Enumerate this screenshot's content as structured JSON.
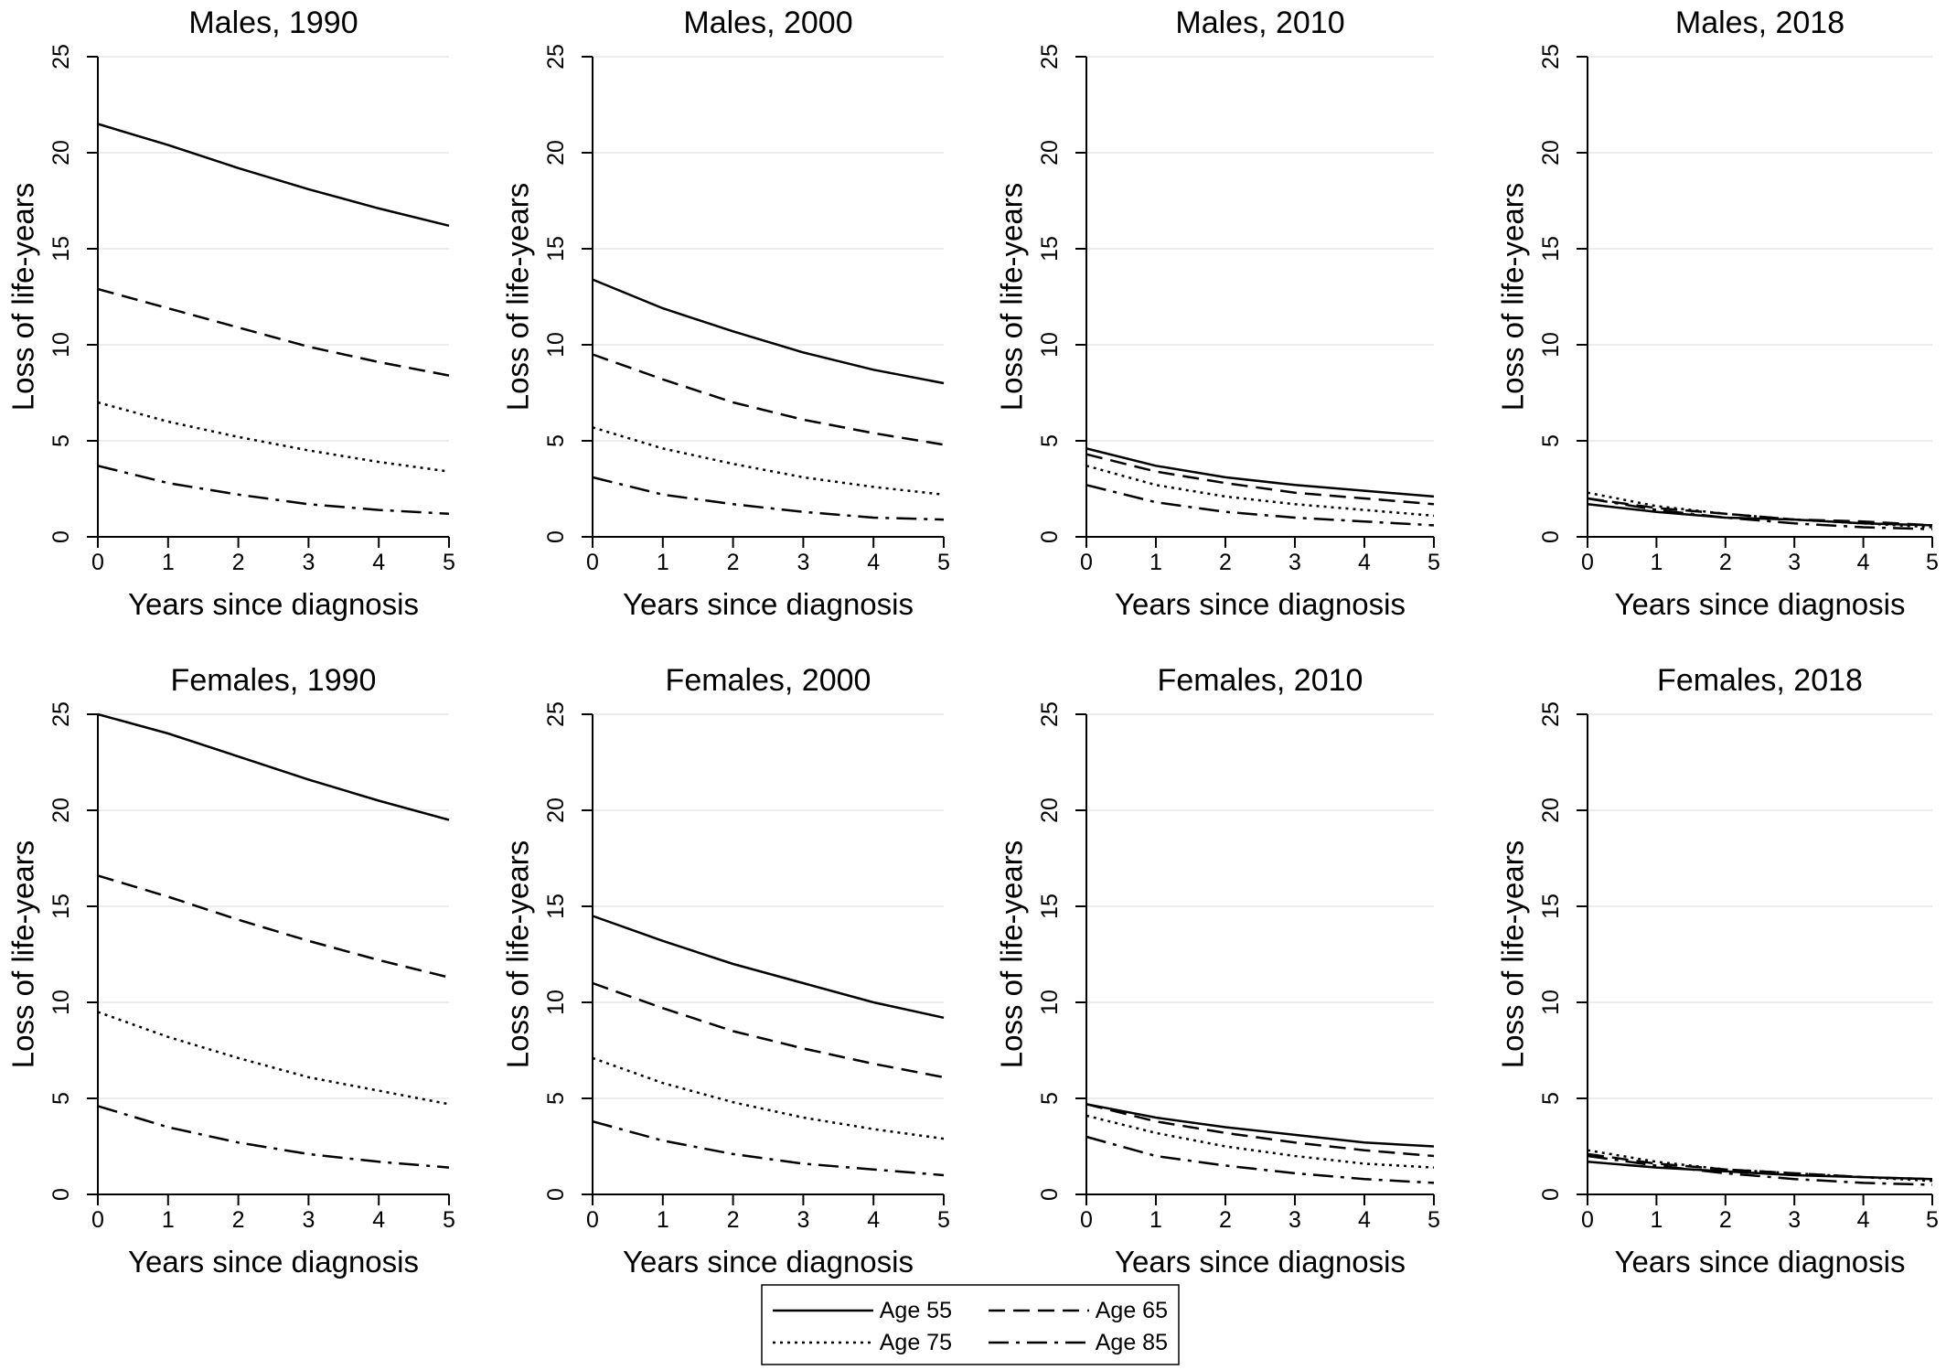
{
  "chart_data": [
    {
      "type": "line",
      "title": "Males, 1990",
      "xlabel": "Years since diagnosis",
      "ylabel": "Loss of life-years",
      "x": [
        0,
        1,
        2,
        3,
        4,
        5
      ],
      "xlim": [
        0,
        5
      ],
      "ylim": [
        0,
        25
      ],
      "xticks": [
        0,
        1,
        2,
        3,
        4,
        5
      ],
      "yticks": [
        0,
        5,
        10,
        15,
        20,
        25
      ],
      "grid": true,
      "series": [
        {
          "name": "Age 55",
          "values": [
            21.5,
            20.4,
            19.2,
            18.1,
            17.1,
            16.2
          ]
        },
        {
          "name": "Age 65",
          "values": [
            12.9,
            11.9,
            10.9,
            9.9,
            9.1,
            8.4
          ]
        },
        {
          "name": "Age 75",
          "values": [
            7.0,
            6.0,
            5.2,
            4.5,
            3.9,
            3.4
          ]
        },
        {
          "name": "Age 85",
          "values": [
            3.7,
            2.8,
            2.2,
            1.7,
            1.4,
            1.2
          ]
        }
      ]
    },
    {
      "type": "line",
      "title": "Males, 2000",
      "xlabel": "Years since diagnosis",
      "ylabel": "Loss of life-years",
      "x": [
        0,
        1,
        2,
        3,
        4,
        5
      ],
      "xlim": [
        0,
        5
      ],
      "ylim": [
        0,
        25
      ],
      "xticks": [
        0,
        1,
        2,
        3,
        4,
        5
      ],
      "yticks": [
        0,
        5,
        10,
        15,
        20,
        25
      ],
      "grid": true,
      "series": [
        {
          "name": "Age 55",
          "values": [
            13.4,
            11.9,
            10.7,
            9.6,
            8.7,
            8.0
          ]
        },
        {
          "name": "Age 65",
          "values": [
            9.5,
            8.2,
            7.0,
            6.1,
            5.4,
            4.8
          ]
        },
        {
          "name": "Age 75",
          "values": [
            5.7,
            4.6,
            3.8,
            3.1,
            2.6,
            2.2
          ]
        },
        {
          "name": "Age 85",
          "values": [
            3.1,
            2.2,
            1.7,
            1.3,
            1.0,
            0.9
          ]
        }
      ]
    },
    {
      "type": "line",
      "title": "Males, 2010",
      "xlabel": "Years since diagnosis",
      "ylabel": "Loss of life-years",
      "x": [
        0,
        1,
        2,
        3,
        4,
        5
      ],
      "xlim": [
        0,
        5
      ],
      "ylim": [
        0,
        25
      ],
      "xticks": [
        0,
        1,
        2,
        3,
        4,
        5
      ],
      "yticks": [
        0,
        5,
        10,
        15,
        20,
        25
      ],
      "grid": true,
      "series": [
        {
          "name": "Age 55",
          "values": [
            4.6,
            3.7,
            3.1,
            2.7,
            2.4,
            2.1
          ]
        },
        {
          "name": "Age 65",
          "values": [
            4.3,
            3.4,
            2.8,
            2.3,
            2.0,
            1.7
          ]
        },
        {
          "name": "Age 75",
          "values": [
            3.7,
            2.7,
            2.1,
            1.7,
            1.4,
            1.1
          ]
        },
        {
          "name": "Age 85",
          "values": [
            2.7,
            1.8,
            1.3,
            1.0,
            0.8,
            0.6
          ]
        }
      ]
    },
    {
      "type": "line",
      "title": "Males, 2018",
      "xlabel": "Years since diagnosis",
      "ylabel": "Loss of life-years",
      "x": [
        0,
        1,
        2,
        3,
        4,
        5
      ],
      "xlim": [
        0,
        5
      ],
      "ylim": [
        0,
        25
      ],
      "xticks": [
        0,
        1,
        2,
        3,
        4,
        5
      ],
      "yticks": [
        0,
        5,
        10,
        15,
        20,
        25
      ],
      "grid": true,
      "series": [
        {
          "name": "Age 55",
          "values": [
            1.7,
            1.3,
            1.0,
            0.9,
            0.7,
            0.6
          ]
        },
        {
          "name": "Age 65",
          "values": [
            2.0,
            1.5,
            1.2,
            0.9,
            0.8,
            0.6
          ]
        },
        {
          "name": "Age 75",
          "values": [
            2.3,
            1.6,
            1.2,
            0.9,
            0.7,
            0.5
          ]
        },
        {
          "name": "Age 85",
          "values": [
            2.0,
            1.4,
            1.0,
            0.7,
            0.5,
            0.4
          ]
        }
      ]
    },
    {
      "type": "line",
      "title": "Females, 1990",
      "xlabel": "Years since diagnosis",
      "ylabel": "Loss of life-years",
      "x": [
        0,
        1,
        2,
        3,
        4,
        5
      ],
      "xlim": [
        0,
        5
      ],
      "ylim": [
        0,
        25
      ],
      "xticks": [
        0,
        1,
        2,
        3,
        4,
        5
      ],
      "yticks": [
        0,
        5,
        10,
        15,
        20,
        25
      ],
      "grid": true,
      "series": [
        {
          "name": "Age 55",
          "values": [
            25.0,
            24.0,
            22.8,
            21.6,
            20.5,
            19.5
          ]
        },
        {
          "name": "Age 65",
          "values": [
            16.6,
            15.5,
            14.3,
            13.2,
            12.2,
            11.3
          ]
        },
        {
          "name": "Age 75",
          "values": [
            9.5,
            8.2,
            7.1,
            6.1,
            5.4,
            4.7
          ]
        },
        {
          "name": "Age 85",
          "values": [
            4.6,
            3.5,
            2.7,
            2.1,
            1.7,
            1.4
          ]
        }
      ]
    },
    {
      "type": "line",
      "title": "Females, 2000",
      "xlabel": "Years since diagnosis",
      "ylabel": "Loss of life-years",
      "x": [
        0,
        1,
        2,
        3,
        4,
        5
      ],
      "xlim": [
        0,
        5
      ],
      "ylim": [
        0,
        25
      ],
      "xticks": [
        0,
        1,
        2,
        3,
        4,
        5
      ],
      "yticks": [
        0,
        5,
        10,
        15,
        20,
        25
      ],
      "grid": true,
      "series": [
        {
          "name": "Age 55",
          "values": [
            14.5,
            13.2,
            12.0,
            11.0,
            10.0,
            9.2
          ]
        },
        {
          "name": "Age 65",
          "values": [
            11.0,
            9.7,
            8.5,
            7.6,
            6.8,
            6.1
          ]
        },
        {
          "name": "Age 75",
          "values": [
            7.1,
            5.8,
            4.8,
            4.0,
            3.4,
            2.9
          ]
        },
        {
          "name": "Age 85",
          "values": [
            3.8,
            2.8,
            2.1,
            1.6,
            1.3,
            1.0
          ]
        }
      ]
    },
    {
      "type": "line",
      "title": "Females, 2010",
      "xlabel": "Years since diagnosis",
      "ylabel": "Loss of life-years",
      "x": [
        0,
        1,
        2,
        3,
        4,
        5
      ],
      "xlim": [
        0,
        5
      ],
      "ylim": [
        0,
        25
      ],
      "xticks": [
        0,
        1,
        2,
        3,
        4,
        5
      ],
      "yticks": [
        0,
        5,
        10,
        15,
        20,
        25
      ],
      "grid": true,
      "series": [
        {
          "name": "Age 55",
          "values": [
            4.7,
            4.0,
            3.5,
            3.1,
            2.7,
            2.5
          ]
        },
        {
          "name": "Age 65",
          "values": [
            4.7,
            3.8,
            3.2,
            2.7,
            2.3,
            2.0
          ]
        },
        {
          "name": "Age 75",
          "values": [
            4.1,
            3.2,
            2.5,
            2.0,
            1.6,
            1.4
          ]
        },
        {
          "name": "Age 85",
          "values": [
            3.0,
            2.0,
            1.5,
            1.1,
            0.8,
            0.6
          ]
        }
      ]
    },
    {
      "type": "line",
      "title": "Females, 2018",
      "xlabel": "Years since diagnosis",
      "ylabel": "Loss of life-years",
      "x": [
        0,
        1,
        2,
        3,
        4,
        5
      ],
      "xlim": [
        0,
        5
      ],
      "ylim": [
        0,
        25
      ],
      "xticks": [
        0,
        1,
        2,
        3,
        4,
        5
      ],
      "yticks": [
        0,
        5,
        10,
        15,
        20,
        25
      ],
      "grid": true,
      "series": [
        {
          "name": "Age 55",
          "values": [
            1.7,
            1.4,
            1.2,
            1.0,
            0.9,
            0.8
          ]
        },
        {
          "name": "Age 65",
          "values": [
            2.1,
            1.6,
            1.3,
            1.1,
            0.9,
            0.8
          ]
        },
        {
          "name": "Age 75",
          "values": [
            2.3,
            1.7,
            1.3,
            1.1,
            0.9,
            0.7
          ]
        },
        {
          "name": "Age 85",
          "values": [
            2.0,
            1.5,
            1.1,
            0.8,
            0.6,
            0.5
          ]
        }
      ]
    }
  ],
  "legend": {
    "placement": "bottom-center",
    "items": [
      {
        "label": "Age 55",
        "style": "solid"
      },
      {
        "label": "Age 65",
        "style": "dashed"
      },
      {
        "label": "Age 75",
        "style": "dotted"
      },
      {
        "label": "Age 85",
        "style": "dash-dot"
      }
    ]
  }
}
